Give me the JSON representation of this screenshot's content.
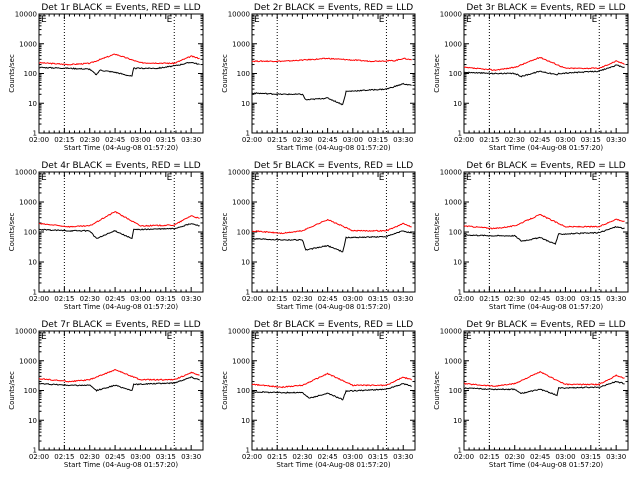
{
  "chart_data": {
    "type": "line",
    "scale_y": "log",
    "ylim": [
      1,
      10000
    ],
    "y_ticks": [
      "1",
      "10",
      "100",
      "1000",
      "10000"
    ],
    "x_ticks": [
      "02:00",
      "02:15",
      "02:30",
      "02:45",
      "03:00",
      "03:15",
      "03:30"
    ],
    "xlabel": "Start Time (04-Aug-08 01:57:20)",
    "ylabel": "Counts/sec",
    "flare_marks": [
      "E",
      "E"
    ],
    "series_colors": {
      "events": "#000000",
      "lld": "#ff0000"
    },
    "panels": [
      {
        "title": "Det 1r BLACK = Events, RED = LLD",
        "events": [
          [
            0,
            160
          ],
          [
            18,
            150
          ],
          [
            30,
            140
          ],
          [
            34,
            90
          ],
          [
            36,
            130
          ],
          [
            45,
            110
          ],
          [
            55,
            80
          ],
          [
            56,
            150
          ],
          [
            70,
            150
          ],
          [
            80,
            180
          ],
          [
            90,
            240
          ],
          [
            95,
            200
          ]
        ],
        "lld": [
          [
            0,
            230
          ],
          [
            18,
            200
          ],
          [
            30,
            220
          ],
          [
            45,
            450
          ],
          [
            60,
            230
          ],
          [
            80,
            220
          ],
          [
            90,
            380
          ],
          [
            95,
            320
          ]
        ]
      },
      {
        "title": "Det 2r BLACK = Events, RED = LLD",
        "events": [
          [
            0,
            22
          ],
          [
            18,
            20
          ],
          [
            30,
            20
          ],
          [
            32,
            13
          ],
          [
            45,
            15
          ],
          [
            54,
            9
          ],
          [
            56,
            25
          ],
          [
            80,
            30
          ],
          [
            90,
            45
          ],
          [
            95,
            40
          ]
        ],
        "lld": [
          [
            0,
            260
          ],
          [
            20,
            260
          ],
          [
            45,
            320
          ],
          [
            70,
            260
          ],
          [
            85,
            270
          ],
          [
            90,
            320
          ],
          [
            95,
            290
          ]
        ]
      },
      {
        "title": "Det 3r BLACK = Events, RED = LLD",
        "events": [
          [
            0,
            110
          ],
          [
            18,
            100
          ],
          [
            30,
            100
          ],
          [
            34,
            80
          ],
          [
            45,
            120
          ],
          [
            55,
            90
          ],
          [
            56,
            100
          ],
          [
            80,
            120
          ],
          [
            90,
            190
          ],
          [
            95,
            160
          ]
        ],
        "lld": [
          [
            0,
            160
          ],
          [
            18,
            130
          ],
          [
            30,
            160
          ],
          [
            45,
            350
          ],
          [
            60,
            150
          ],
          [
            80,
            150
          ],
          [
            90,
            260
          ],
          [
            95,
            210
          ]
        ]
      },
      {
        "title": "Det 4r BLACK = Events, RED = LLD",
        "events": [
          [
            0,
            120
          ],
          [
            18,
            110
          ],
          [
            30,
            110
          ],
          [
            34,
            60
          ],
          [
            45,
            110
          ],
          [
            55,
            60
          ],
          [
            56,
            120
          ],
          [
            80,
            130
          ],
          [
            90,
            190
          ],
          [
            95,
            160
          ]
        ],
        "lld": [
          [
            0,
            190
          ],
          [
            18,
            150
          ],
          [
            30,
            160
          ],
          [
            45,
            480
          ],
          [
            60,
            160
          ],
          [
            80,
            170
          ],
          [
            90,
            350
          ],
          [
            95,
            280
          ]
        ]
      },
      {
        "title": "Det 5r BLACK = Events, RED = LLD",
        "events": [
          [
            0,
            60
          ],
          [
            18,
            55
          ],
          [
            30,
            55
          ],
          [
            32,
            25
          ],
          [
            45,
            35
          ],
          [
            54,
            22
          ],
          [
            56,
            65
          ],
          [
            80,
            70
          ],
          [
            90,
            110
          ],
          [
            95,
            90
          ]
        ],
        "lld": [
          [
            0,
            110
          ],
          [
            18,
            90
          ],
          [
            30,
            110
          ],
          [
            45,
            260
          ],
          [
            60,
            110
          ],
          [
            80,
            110
          ],
          [
            90,
            190
          ],
          [
            95,
            150
          ]
        ]
      },
      {
        "title": "Det 6r BLACK = Events, RED = LLD",
        "events": [
          [
            0,
            80
          ],
          [
            18,
            75
          ],
          [
            30,
            75
          ],
          [
            34,
            50
          ],
          [
            45,
            65
          ],
          [
            54,
            40
          ],
          [
            56,
            85
          ],
          [
            80,
            95
          ],
          [
            90,
            150
          ],
          [
            95,
            130
          ]
        ],
        "lld": [
          [
            0,
            160
          ],
          [
            18,
            130
          ],
          [
            30,
            160
          ],
          [
            45,
            380
          ],
          [
            60,
            150
          ],
          [
            80,
            150
          ],
          [
            90,
            270
          ],
          [
            95,
            220
          ]
        ]
      },
      {
        "title": "Det 7r BLACK = Events, RED = LLD",
        "events": [
          [
            0,
            170
          ],
          [
            18,
            150
          ],
          [
            30,
            150
          ],
          [
            34,
            100
          ],
          [
            45,
            150
          ],
          [
            55,
            100
          ],
          [
            56,
            160
          ],
          [
            80,
            180
          ],
          [
            90,
            280
          ],
          [
            95,
            230
          ]
        ],
        "lld": [
          [
            0,
            250
          ],
          [
            18,
            200
          ],
          [
            30,
            230
          ],
          [
            45,
            500
          ],
          [
            60,
            230
          ],
          [
            80,
            230
          ],
          [
            90,
            400
          ],
          [
            95,
            330
          ]
        ]
      },
      {
        "title": "Det 8r BLACK = Events, RED = LLD",
        "events": [
          [
            0,
            90
          ],
          [
            18,
            85
          ],
          [
            30,
            85
          ],
          [
            34,
            55
          ],
          [
            45,
            80
          ],
          [
            54,
            50
          ],
          [
            56,
            95
          ],
          [
            80,
            110
          ],
          [
            90,
            170
          ],
          [
            95,
            140
          ]
        ],
        "lld": [
          [
            0,
            160
          ],
          [
            18,
            130
          ],
          [
            30,
            150
          ],
          [
            45,
            370
          ],
          [
            60,
            150
          ],
          [
            80,
            150
          ],
          [
            90,
            280
          ],
          [
            95,
            230
          ]
        ]
      },
      {
        "title": "Det 9r BLACK = Events, RED = LLD",
        "events": [
          [
            0,
            120
          ],
          [
            18,
            110
          ],
          [
            30,
            110
          ],
          [
            34,
            80
          ],
          [
            45,
            110
          ],
          [
            55,
            70
          ],
          [
            56,
            120
          ],
          [
            80,
            130
          ],
          [
            90,
            200
          ],
          [
            95,
            170
          ]
        ],
        "lld": [
          [
            0,
            170
          ],
          [
            18,
            140
          ],
          [
            30,
            170
          ],
          [
            45,
            420
          ],
          [
            60,
            160
          ],
          [
            80,
            160
          ],
          [
            90,
            320
          ],
          [
            95,
            260
          ]
        ]
      }
    ]
  }
}
